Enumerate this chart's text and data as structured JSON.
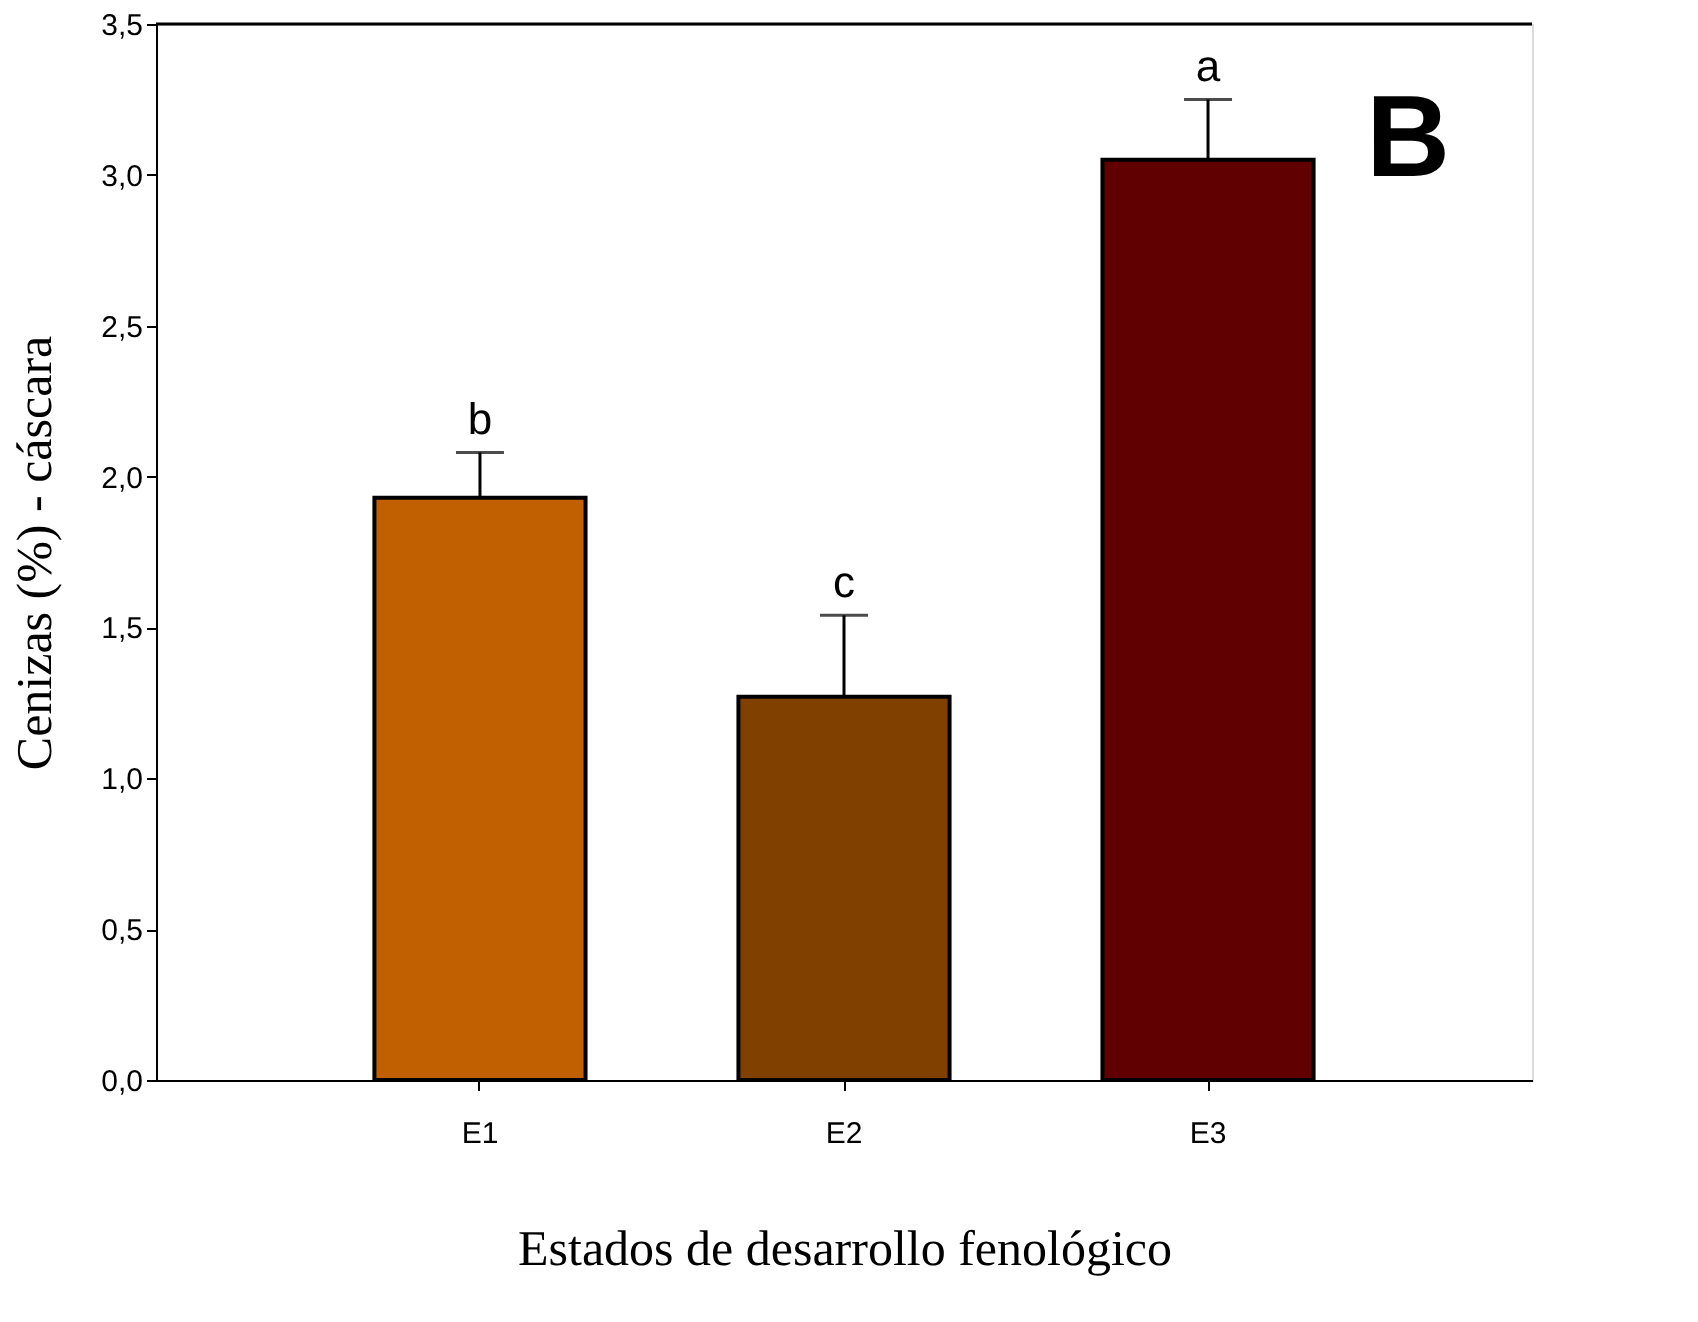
{
  "chart_data": {
    "type": "bar",
    "xlabel": "Estados de desarrollo fenológico",
    "ylabel": "Cenizas (%) - cáscara",
    "categories": [
      "E1",
      "E2",
      "E3"
    ],
    "values": [
      1.93,
      1.27,
      3.05
    ],
    "colors": [
      "#c06000",
      "#804000",
      "#600000"
    ],
    "errors": [
      [
        1.93,
        2.08
      ],
      [
        1.27,
        1.54
      ],
      [
        3.05,
        3.25
      ]
    ],
    "ylim": [
      0,
      3.5
    ],
    "yticks": [
      {
        "value": 0,
        "label": "0,0"
      },
      {
        "value": 0.5,
        "label": "0,5"
      },
      {
        "value": 1,
        "label": "1,0"
      },
      {
        "value": 1.5,
        "label": "1,5"
      },
      {
        "value": 2,
        "label": "2,0"
      },
      {
        "value": 2.5,
        "label": "2,5"
      },
      {
        "value": 3,
        "label": "3,0"
      },
      {
        "value": 3.5,
        "label": "3,5"
      }
    ],
    "annotations": [
      {
        "text": "b",
        "x": "E1",
        "y": 2.08
      },
      {
        "text": "c",
        "x": "E2",
        "y": 1.54
      },
      {
        "text": "a",
        "x": "E3",
        "y": 3.25
      },
      "B"
    ],
    "grid": false
  }
}
